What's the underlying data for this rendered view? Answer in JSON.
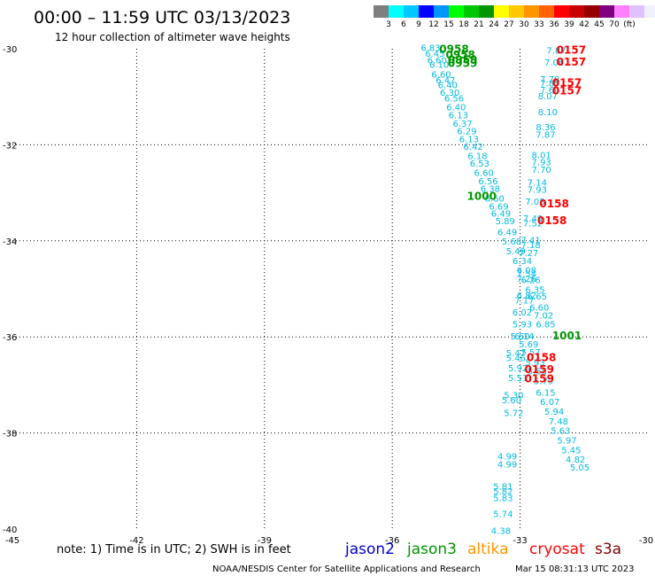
{
  "title": "00:00 – 11:59 UTC 03/13/2023",
  "subtitle": "12 hour collection of altimeter wave heights",
  "colorbar": {
    "colors": [
      "#7f7f7f",
      "#00ffff",
      "#00c8ff",
      "#0000ff",
      "#0096ff",
      "#00ff00",
      "#00c800",
      "#009600",
      "#ffff00",
      "#ffc800",
      "#ff9600",
      "#ff6400",
      "#ff0000",
      "#c80000",
      "#960000",
      "#800080",
      "#ff80ff",
      "#e0c0ff",
      "#f0f0ff"
    ],
    "labels": [
      "3",
      "6",
      "9",
      "12",
      "15",
      "18",
      "21",
      "24",
      "27",
      "30",
      "33",
      "36",
      "39",
      "42",
      "45",
      "70",
      "(ft)"
    ]
  },
  "note": "note:  1) Time is in UTC;  2) SWH is in feet",
  "satellites": [
    {
      "name": "jason2",
      "color": "#0000cc"
    },
    {
      "name": "jason3",
      "color": "#009600"
    },
    {
      "name": "altika",
      "color": "#ff9600"
    },
    {
      "name": "cryosat",
      "color": "#ff0000"
    },
    {
      "name": "s3a",
      "color": "#800000"
    }
  ],
  "credit": "NOAA/NESDIS Center for Satellite Applications and Research",
  "timestamp": "Mar 15 08:31:13 UTC 2023",
  "chart_data": {
    "type": "scatter",
    "xlim": [
      -45,
      -30
    ],
    "ylim": [
      -40,
      -30
    ],
    "x_ticks": [
      -45,
      -42,
      -39,
      -36,
      -33,
      -30
    ],
    "x_tick_labels": [
      "-45",
      "-42",
      "-39",
      "-36",
      "-33",
      "-30"
    ],
    "y_ticks": [
      -30,
      -32,
      -34,
      -36,
      -38,
      -40
    ],
    "y_tick_labels": [
      "-30",
      "-32",
      "-34",
      "-36",
      "-38",
      "-40"
    ],
    "grid": true,
    "swh_color": "#00bbe0",
    "series": [
      {
        "name": "jason3",
        "color": "#009600",
        "swh": [
          {
            "x": -35.1,
            "y": -30.05,
            "v": "6.83"
          },
          {
            "x": -35.0,
            "y": -30.17,
            "v": "6.45"
          },
          {
            "x": -34.95,
            "y": -30.3,
            "v": "6.60"
          },
          {
            "x": -34.9,
            "y": -30.4,
            "v": "6.10"
          },
          {
            "x": -34.85,
            "y": -30.6,
            "v": "6.60"
          },
          {
            "x": -34.75,
            "y": -30.72,
            "v": "6.47"
          },
          {
            "x": -34.7,
            "y": -30.82,
            "v": "6.40"
          },
          {
            "x": -34.65,
            "y": -30.98,
            "v": "6.30"
          },
          {
            "x": -34.55,
            "y": -31.1,
            "v": "6.56"
          },
          {
            "x": -34.5,
            "y": -31.28,
            "v": "6.40"
          },
          {
            "x": -34.45,
            "y": -31.45,
            "v": "6.13"
          },
          {
            "x": -34.35,
            "y": -31.62,
            "v": "6.37"
          },
          {
            "x": -34.25,
            "y": -31.78,
            "v": "6.29"
          },
          {
            "x": -34.2,
            "y": -31.95,
            "v": "6.13"
          },
          {
            "x": -34.1,
            "y": -32.1,
            "v": "6.42"
          },
          {
            "x": -34.0,
            "y": -32.3,
            "v": "6.18"
          },
          {
            "x": -33.95,
            "y": -32.45,
            "v": "6.53"
          },
          {
            "x": -33.85,
            "y": -32.65,
            "v": "6.60"
          },
          {
            "x": -33.75,
            "y": -32.82,
            "v": "6.56"
          },
          {
            "x": -33.7,
            "y": -32.98,
            "v": "6.38"
          },
          {
            "x": -33.6,
            "y": -33.18,
            "v": "6.60"
          },
          {
            "x": -33.5,
            "y": -33.35,
            "v": "6.69"
          },
          {
            "x": -33.45,
            "y": -33.5,
            "v": "6.49"
          },
          {
            "x": -33.35,
            "y": -33.65,
            "v": "5.89"
          },
          {
            "x": -33.3,
            "y": -33.88,
            "v": "6.49"
          },
          {
            "x": -33.2,
            "y": -34.08,
            "v": "5.68"
          },
          {
            "x": -33.1,
            "y": -34.28,
            "v": "5.49"
          },
          {
            "x": -32.95,
            "y": -34.48,
            "v": "6.34"
          },
          {
            "x": -32.85,
            "y": -34.68,
            "v": "6.08"
          },
          {
            "x": -32.75,
            "y": -34.88,
            "v": "6.26"
          },
          {
            "x": -32.65,
            "y": -35.08,
            "v": "6.35"
          },
          {
            "x": -32.6,
            "y": -35.22,
            "v": "6.65"
          },
          {
            "x": -32.55,
            "y": -35.45,
            "v": "6.60"
          },
          {
            "x": -32.45,
            "y": -35.62,
            "v": "7.02"
          },
          {
            "x": -32.4,
            "y": -35.8,
            "v": "6.85"
          }
        ],
        "times": [
          {
            "x": -34.55,
            "y": -30.08,
            "v": "0958"
          },
          {
            "x": -34.4,
            "y": -30.2,
            "v": "0958"
          },
          {
            "x": -34.35,
            "y": -30.3,
            "v": "0959"
          },
          {
            "x": -34.35,
            "y": -30.38,
            "v": "0959"
          },
          {
            "x": -33.9,
            "y": -33.15,
            "v": "1000"
          },
          {
            "x": -31.9,
            "y": -36.05,
            "v": "1001"
          }
        ]
      },
      {
        "name": "cryosat",
        "color": "#ff0000",
        "swh": [
          {
            "x": -32.15,
            "y": -30.1,
            "v": "7.87"
          },
          {
            "x": -32.2,
            "y": -30.35,
            "v": "7.06"
          },
          {
            "x": -32.3,
            "y": -30.7,
            "v": "7.78"
          },
          {
            "x": -32.3,
            "y": -30.78,
            "v": "7.85"
          },
          {
            "x": -32.3,
            "y": -30.92,
            "v": "7.60"
          },
          {
            "x": -32.35,
            "y": -31.05,
            "v": "8.07"
          },
          {
            "x": -32.35,
            "y": -31.38,
            "v": "8.10"
          },
          {
            "x": -32.4,
            "y": -31.7,
            "v": "8.36"
          },
          {
            "x": -32.4,
            "y": -31.85,
            "v": "7.87"
          },
          {
            "x": -32.5,
            "y": -32.28,
            "v": "8.01"
          },
          {
            "x": -32.5,
            "y": -32.43,
            "v": "7.93"
          },
          {
            "x": -32.5,
            "y": -32.58,
            "v": "7.70"
          },
          {
            "x": -32.6,
            "y": -32.85,
            "v": "7.14"
          },
          {
            "x": -32.6,
            "y": -33.0,
            "v": "7.93"
          },
          {
            "x": -32.65,
            "y": -33.25,
            "v": "7.08"
          },
          {
            "x": -32.7,
            "y": -33.6,
            "v": "7.49"
          },
          {
            "x": -32.7,
            "y": -33.7,
            "v": "7.52"
          },
          {
            "x": -32.75,
            "y": -34.05,
            "v": "7.41"
          },
          {
            "x": -32.75,
            "y": -34.15,
            "v": "7.18"
          },
          {
            "x": -32.8,
            "y": -34.32,
            "v": "7.27"
          },
          {
            "x": -32.85,
            "y": -34.75,
            "v": "7.54"
          },
          {
            "x": -32.85,
            "y": -34.85,
            "v": "7.26"
          },
          {
            "x": -32.85,
            "y": -35.2,
            "v": "6.82"
          },
          {
            "x": -32.9,
            "y": -35.3,
            "v": "7.17"
          },
          {
            "x": -32.95,
            "y": -35.55,
            "v": "6.02"
          },
          {
            "x": -32.95,
            "y": -35.8,
            "v": "5.93"
          },
          {
            "x": -33.0,
            "y": -36.05,
            "v": "5.60"
          },
          {
            "x": -32.9,
            "y": -36.05,
            "v": "6.14"
          },
          {
            "x": -32.8,
            "y": -36.22,
            "v": "5.69"
          },
          {
            "x": -32.75,
            "y": -36.38,
            "v": "5.57"
          },
          {
            "x": -33.1,
            "y": -36.4,
            "v": "5.47"
          },
          {
            "x": -33.1,
            "y": -36.5,
            "v": "5.46"
          },
          {
            "x": -32.65,
            "y": -36.6,
            "v": "5.93"
          },
          {
            "x": -32.6,
            "y": -36.78,
            "v": "5.55"
          },
          {
            "x": -33.05,
            "y": -36.72,
            "v": "5.92"
          },
          {
            "x": -33.05,
            "y": -36.92,
            "v": "5.51"
          },
          {
            "x": -32.45,
            "y": -36.98,
            "v": "5.79"
          },
          {
            "x": -32.4,
            "y": -37.22,
            "v": "6.15"
          },
          {
            "x": -32.3,
            "y": -37.42,
            "v": "6.07"
          },
          {
            "x": -32.2,
            "y": -37.62,
            "v": "5.94"
          },
          {
            "x": -32.1,
            "y": -37.82,
            "v": "7.48"
          },
          {
            "x": -32.05,
            "y": -38.02,
            "v": "5.63"
          },
          {
            "x": -31.9,
            "y": -38.22,
            "v": "5.97"
          },
          {
            "x": -31.8,
            "y": -38.42,
            "v": "5.45"
          },
          {
            "x": -31.7,
            "y": -38.62,
            "v": "4.82"
          },
          {
            "x": -31.6,
            "y": -38.78,
            "v": "5.05"
          },
          {
            "x": -33.15,
            "y": -37.28,
            "v": "5.30"
          },
          {
            "x": -33.2,
            "y": -37.38,
            "v": "5.60"
          },
          {
            "x": -33.15,
            "y": -37.65,
            "v": "5.72"
          },
          {
            "x": -33.3,
            "y": -38.55,
            "v": "4.99"
          },
          {
            "x": -33.3,
            "y": -38.72,
            "v": "4.99"
          },
          {
            "x": -33.4,
            "y": -39.18,
            "v": "5.81"
          },
          {
            "x": -33.4,
            "y": -39.28,
            "v": "5.82"
          },
          {
            "x": -33.4,
            "y": -39.42,
            "v": "5.83"
          },
          {
            "x": -33.4,
            "y": -39.75,
            "v": "5.74"
          },
          {
            "x": -33.45,
            "y": -40.1,
            "v": "4.38"
          }
        ],
        "times": [
          {
            "x": -31.8,
            "y": -30.1,
            "v": "0157"
          },
          {
            "x": -31.8,
            "y": -30.35,
            "v": "0157"
          },
          {
            "x": -31.9,
            "y": -30.78,
            "v": "0157"
          },
          {
            "x": -31.9,
            "y": -30.95,
            "v": "0157"
          },
          {
            "x": -32.2,
            "y": -33.3,
            "v": "0158"
          },
          {
            "x": -32.25,
            "y": -33.65,
            "v": "0158"
          },
          {
            "x": -32.5,
            "y": -36.5,
            "v": "0158"
          },
          {
            "x": -32.55,
            "y": -36.75,
            "v": "0159"
          },
          {
            "x": -32.55,
            "y": -36.95,
            "v": "0159"
          }
        ]
      }
    ]
  }
}
